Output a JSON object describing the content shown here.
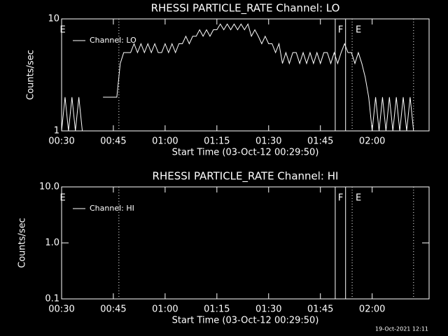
{
  "chart_data": [
    {
      "type": "line",
      "title": "RHESSI PARTICLE_RATE Channel: LO",
      "xlabel": "Start Time (03-Oct-12 00:29:50)",
      "ylabel": "Counts/sec",
      "ylog": true,
      "ylim": [
        1,
        10
      ],
      "yticks": [
        1,
        10
      ],
      "xlim": [
        30,
        136.5
      ],
      "xticks": [
        {
          "value": 30,
          "label": "00:30"
        },
        {
          "value": 45,
          "label": "00:45"
        },
        {
          "value": 60,
          "label": "01:00"
        },
        {
          "value": 75,
          "label": "01:15"
        },
        {
          "value": 90,
          "label": "01:30"
        },
        {
          "value": 105,
          "label": "01:45"
        },
        {
          "value": 120,
          "label": "02:00"
        }
      ],
      "x": [
        30,
        31,
        32,
        33,
        34,
        35,
        36,
        37,
        38,
        39,
        40,
        41,
        42,
        43,
        44,
        45,
        46,
        47,
        48,
        49,
        50,
        51,
        52,
        53,
        54,
        55,
        56,
        57,
        58,
        59,
        60,
        61,
        62,
        63,
        64,
        65,
        66,
        67,
        68,
        69,
        70,
        71,
        72,
        73,
        74,
        75,
        76,
        77,
        78,
        79,
        80,
        81,
        82,
        83,
        84,
        85,
        86,
        87,
        88,
        89,
        90,
        91,
        92,
        93,
        94,
        95,
        96,
        97,
        98,
        99,
        100,
        101,
        102,
        103,
        104,
        105,
        106,
        107,
        108,
        109,
        110,
        111,
        112,
        113,
        114,
        115,
        116,
        117,
        118,
        119,
        120,
        121,
        122,
        123,
        124,
        125,
        126,
        127,
        128,
        129,
        130,
        131,
        132
      ],
      "series": [
        {
          "name": "Channel: LO",
          "color": "#ffffff",
          "values": [
            1,
            2,
            1,
            2,
            1,
            2,
            1,
            null,
            null,
            null,
            null,
            null,
            2,
            2,
            2,
            2,
            2,
            4,
            5,
            5,
            5,
            6,
            5,
            6,
            5,
            6,
            5,
            6,
            5,
            5,
            6,
            5,
            6,
            5,
            6,
            6,
            7,
            6,
            7,
            7,
            8,
            7,
            8,
            7,
            8,
            8,
            9,
            8,
            9,
            8,
            9,
            8,
            9,
            8,
            9,
            7,
            8,
            7,
            6,
            7,
            6,
            6,
            5,
            6,
            4,
            5,
            4,
            5,
            5,
            4,
            5,
            4,
            5,
            4,
            5,
            4,
            5,
            5,
            4,
            5,
            4,
            5,
            6,
            5,
            5,
            4,
            5,
            4,
            3,
            2,
            1,
            2,
            1,
            2,
            1,
            2,
            1,
            2,
            1,
            2,
            1,
            2,
            1
          ]
        }
      ],
      "vlines": [
        {
          "x": 46.6,
          "style": "dotted"
        },
        {
          "x": 109.3,
          "style": "solid"
        },
        {
          "x": 112.3,
          "style": "solid"
        },
        {
          "x": 114.2,
          "style": "dotted"
        },
        {
          "x": 132,
          "style": "dotted"
        }
      ],
      "labels": [
        {
          "x": 29.5,
          "text": "E"
        },
        {
          "x": 110.1,
          "text": "F"
        },
        {
          "x": 115.2,
          "text": "E"
        }
      ]
    },
    {
      "type": "line",
      "title": "RHESSI PARTICLE_RATE Channel: HI",
      "xlabel": "Start Time (03-Oct-12 00:29:50)",
      "ylabel": "Counts/sec",
      "ylog": true,
      "ylim": [
        0.1,
        10
      ],
      "yticks": [
        {
          "value": 0.1,
          "label": "0.1"
        },
        {
          "value": 1,
          "label": "1.0"
        },
        {
          "value": 10,
          "label": "10.0"
        }
      ],
      "xlim": [
        30,
        136.5
      ],
      "xticks": [
        {
          "value": 30,
          "label": "00:30"
        },
        {
          "value": 45,
          "label": "00:45"
        },
        {
          "value": 60,
          "label": "01:00"
        },
        {
          "value": 75,
          "label": "01:15"
        },
        {
          "value": 90,
          "label": "01:30"
        },
        {
          "value": 105,
          "label": "01:45"
        },
        {
          "value": 120,
          "label": "02:00"
        }
      ],
      "x": [],
      "series": [
        {
          "name": "Channel: HI",
          "color": "#ffffff",
          "values": []
        }
      ],
      "vlines": [
        {
          "x": 46.6,
          "style": "dotted"
        },
        {
          "x": 109.3,
          "style": "solid"
        },
        {
          "x": 112.3,
          "style": "solid"
        },
        {
          "x": 114.2,
          "style": "dotted"
        },
        {
          "x": 132,
          "style": "dotted"
        }
      ],
      "labels": [
        {
          "x": 29.5,
          "text": "E"
        },
        {
          "x": 110.1,
          "text": "F"
        },
        {
          "x": 115.2,
          "text": "E"
        }
      ]
    }
  ],
  "timestamp": "19-Oct-2021 12:11"
}
